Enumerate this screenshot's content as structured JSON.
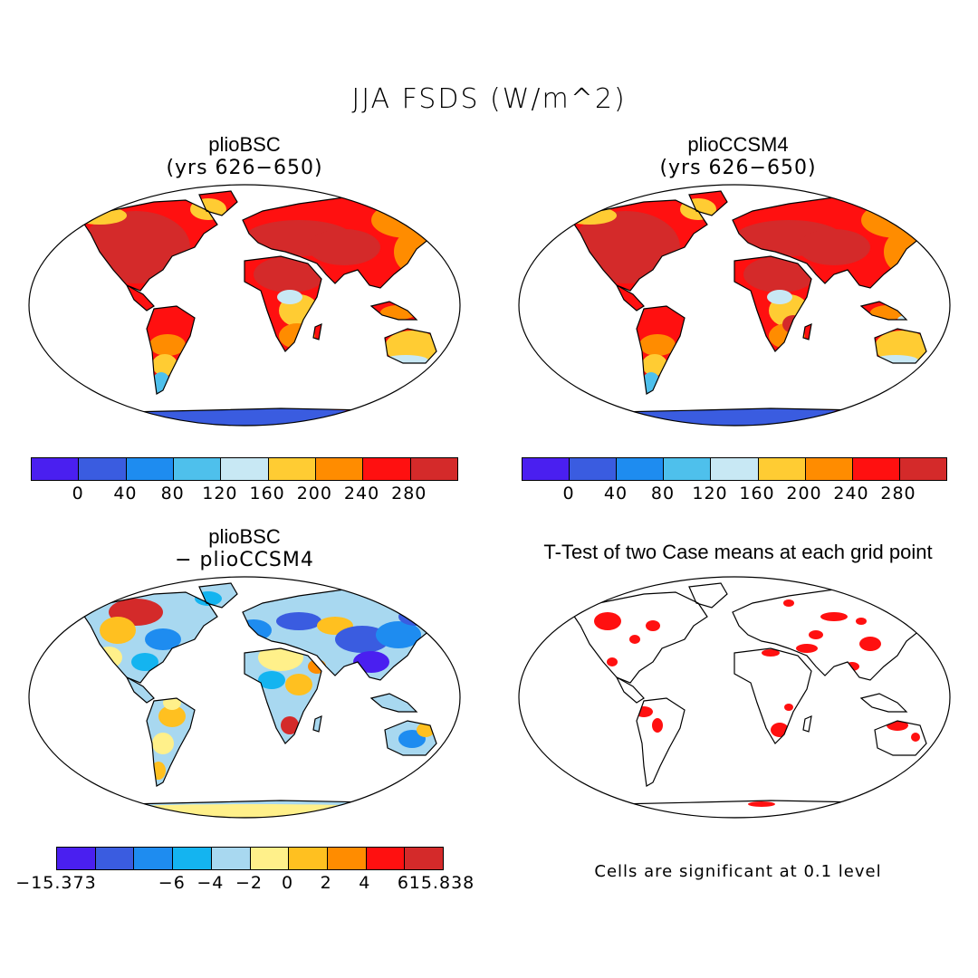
{
  "title": "JJA FSDS (W/m^2)",
  "panels": {
    "tl": {
      "title": "plioBSC",
      "subtitle": "(yrs 626−650)"
    },
    "tr": {
      "title": "plioCCSM4",
      "subtitle": "(yrs 626−650)"
    },
    "bl": {
      "title": "plioBSC",
      "subtitle": "− plioCCSM4"
    },
    "br": {
      "title": "T-Test of two Case means at each grid point",
      "note": "Cells are significant at 0.1 level"
    }
  },
  "colorbar_abs": {
    "colors": [
      "#4a1ff0",
      "#3a5ce0",
      "#1e8cf0",
      "#4ec0ec",
      "#c8e8f4",
      "#ffcc33",
      "#ff8c00",
      "#ff1010",
      "#d42a2a"
    ],
    "labels": [
      "0",
      "40",
      "80",
      "120",
      "160",
      "200",
      "240",
      "280"
    ]
  },
  "colorbar_diff": {
    "colors": [
      "#4a1ff0",
      "#3a5ce0",
      "#1e8cf0",
      "#14b4f0",
      "#a8d8f0",
      "#fff08a",
      "#ffc020",
      "#ff8c00",
      "#ff1010",
      "#d42a2a"
    ],
    "labels": [
      "−15.373",
      "−6",
      "−4",
      "−2",
      "0",
      "2",
      "4",
      "6",
      "15.838"
    ]
  },
  "chart_data": [
    {
      "type": "heatmap",
      "title": "plioBSC (yrs 626−650)",
      "projection": "Robinson",
      "variable": "JJA FSDS (W/m^2)",
      "levels": [
        0,
        40,
        80,
        120,
        160,
        200,
        240,
        280
      ]
    },
    {
      "type": "heatmap",
      "title": "plioCCSM4 (yrs 626−650)",
      "projection": "Robinson",
      "variable": "JJA FSDS (W/m^2)",
      "levels": [
        0,
        40,
        80,
        120,
        160,
        200,
        240,
        280
      ]
    },
    {
      "type": "heatmap",
      "title": "plioBSC − plioCCSM4",
      "projection": "Robinson",
      "levels": [
        -15.373,
        -6,
        -4,
        -2,
        0,
        2,
        4,
        6,
        15.838
      ]
    },
    {
      "type": "heatmap",
      "title": "T-Test of two Case means at each grid point",
      "projection": "Robinson",
      "significance": "0.1"
    }
  ]
}
